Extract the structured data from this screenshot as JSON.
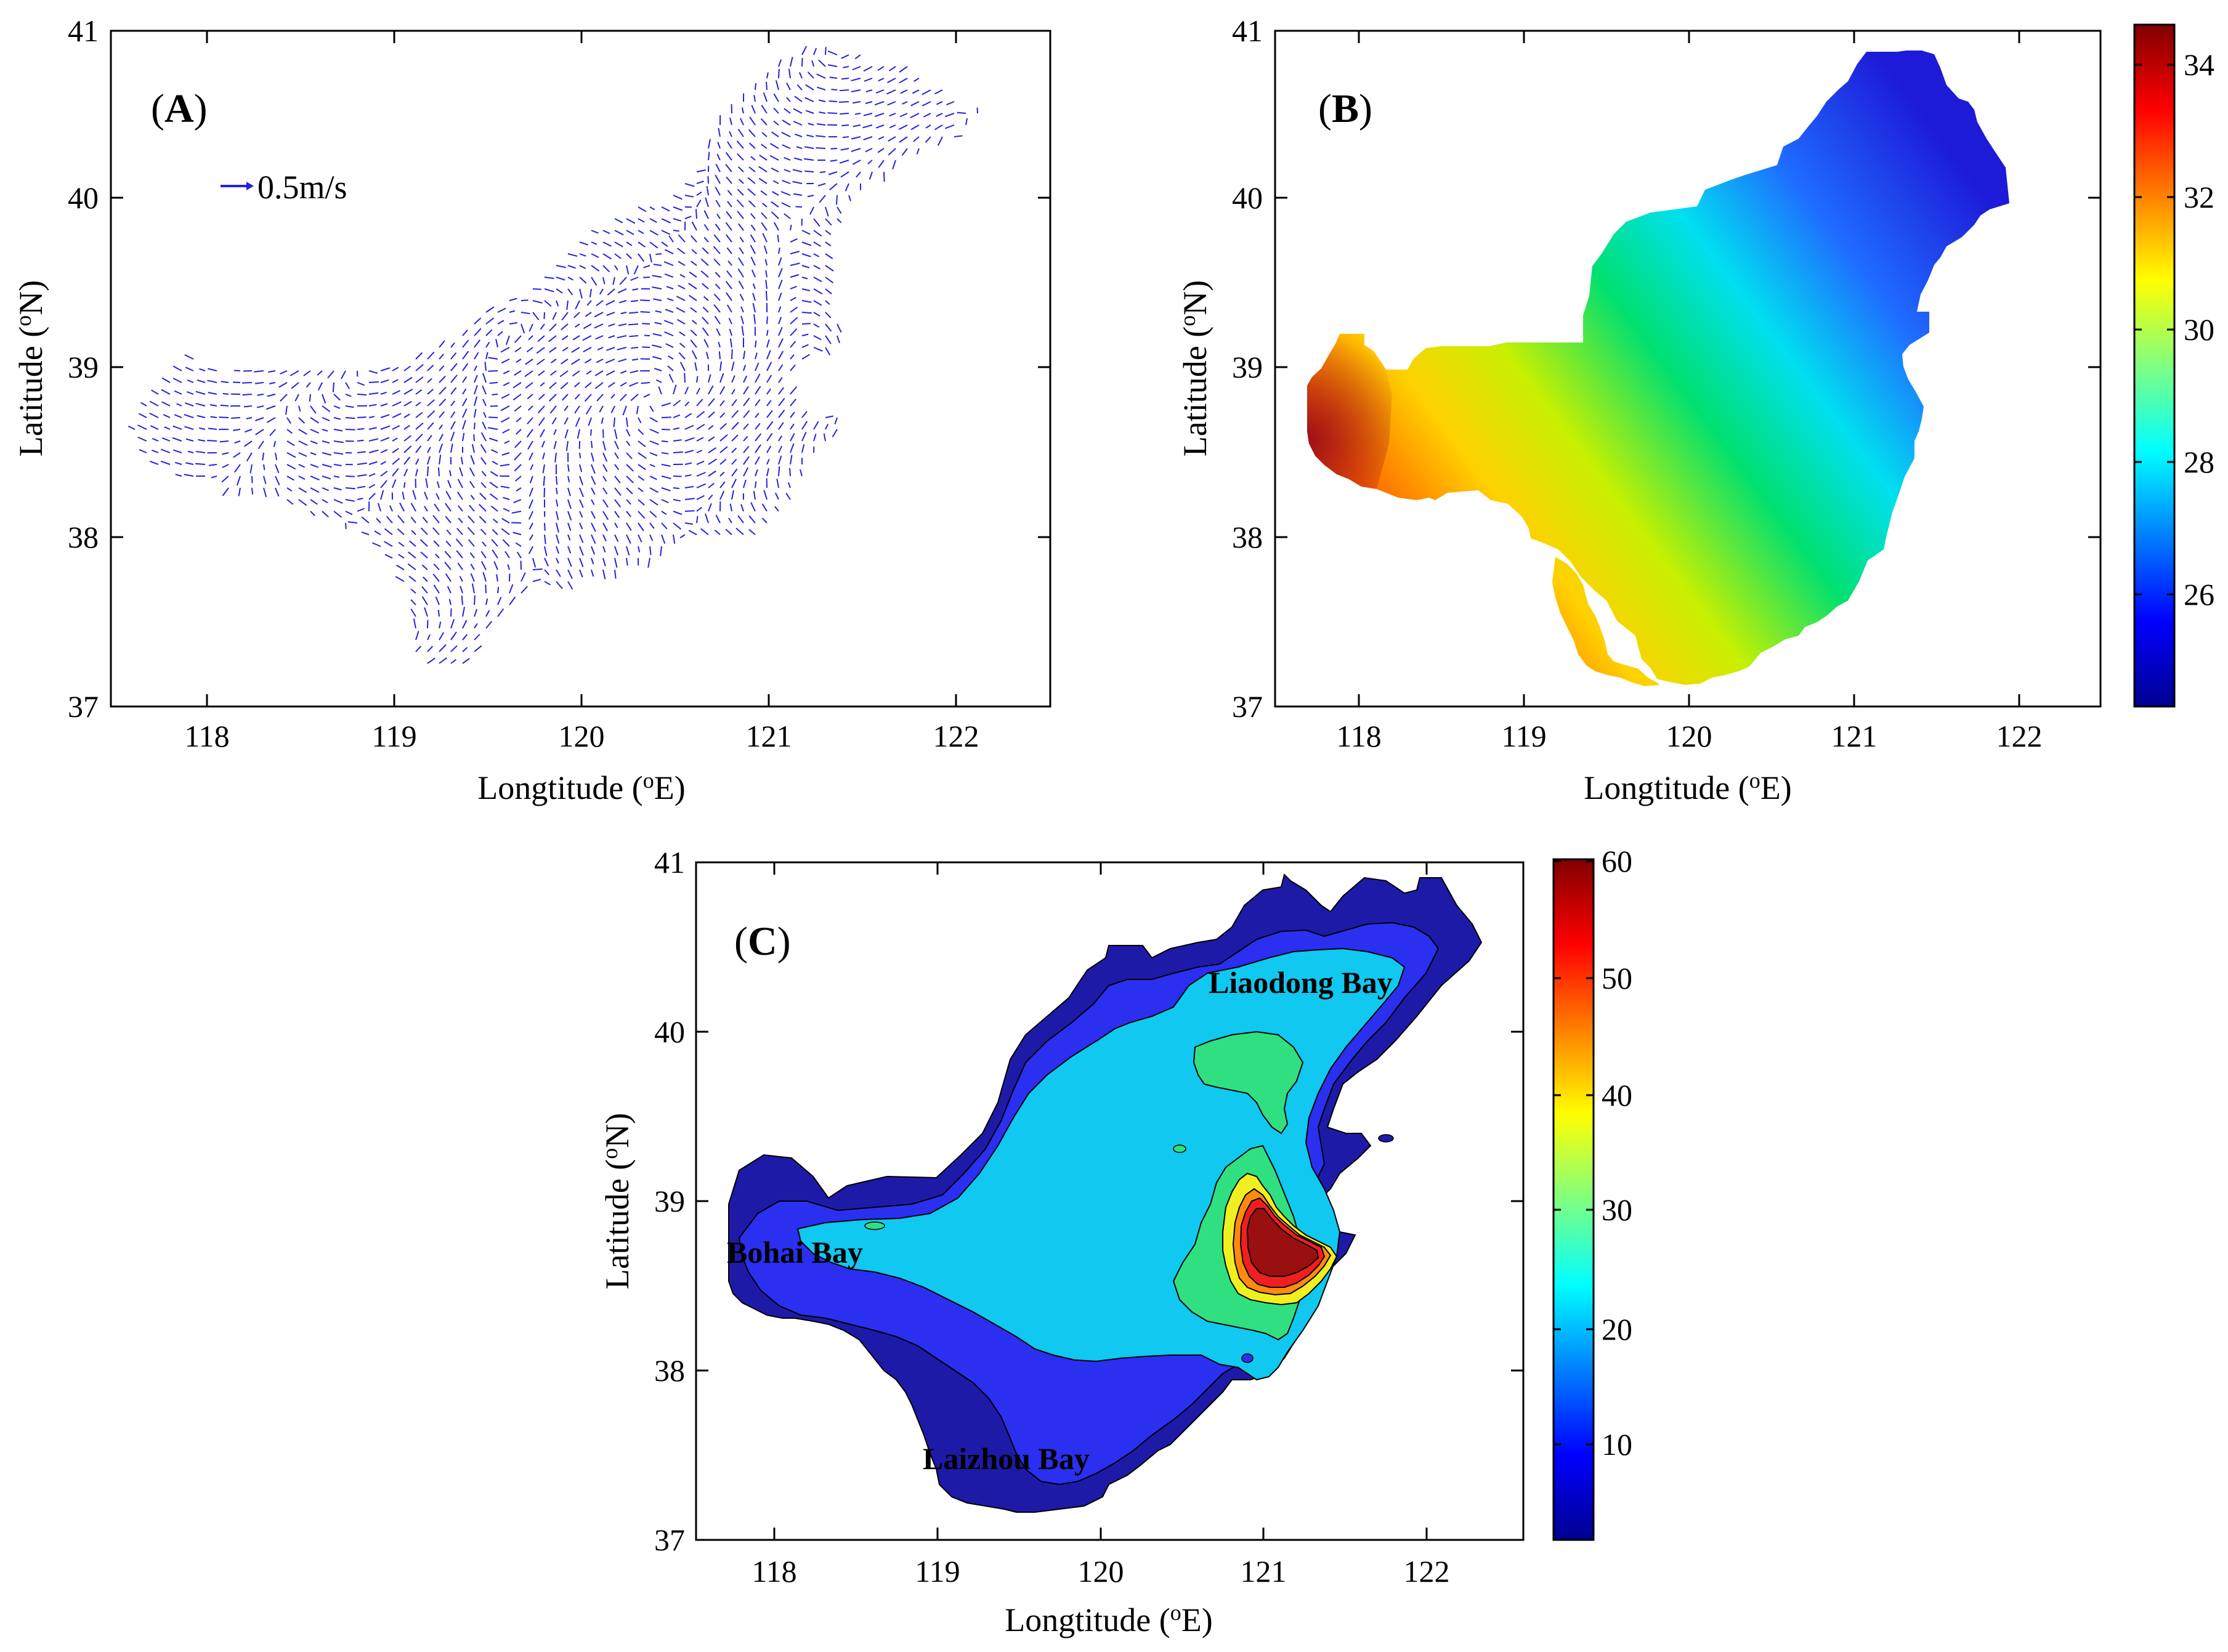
{
  "panels": [
    {
      "id": "A",
      "label_open": "(",
      "label_letter": "A",
      "label_close": ")",
      "type": "vector-field",
      "xlabel_text": "Longtitude (",
      "xlabel_sup": "o",
      "xlabel_unit": "E)",
      "ylabel_text": "Latitude (",
      "ylabel_sup": "o",
      "ylabel_unit": "N)",
      "xticks": [
        "118",
        "119",
        "120",
        "121",
        "122"
      ],
      "yticks": [
        "37",
        "38",
        "39",
        "40",
        "41"
      ],
      "xlim": [
        117.55,
        122.55
      ],
      "ylim": [
        37,
        41
      ],
      "scale_label": "0.5m/s",
      "vector_color": "#2222dd"
    },
    {
      "id": "B",
      "label_open": "(",
      "label_letter": "B",
      "label_close": ")",
      "type": "heatmap",
      "xlabel_text": "Longtitude (",
      "xlabel_sup": "o",
      "xlabel_unit": "E)",
      "ylabel_text": "Latitude (",
      "ylabel_sup": "o",
      "ylabel_unit": "N)",
      "xticks": [
        "118",
        "119",
        "120",
        "121",
        "122"
      ],
      "yticks": [
        "37",
        "38",
        "39",
        "40",
        "41"
      ],
      "xlim": [
        117.55,
        122.55
      ],
      "ylim": [
        37,
        41
      ],
      "colorbar_ticks": [
        "26",
        "28",
        "30",
        "32",
        "34"
      ],
      "colorbar_range": [
        24.3,
        34.6
      ]
    },
    {
      "id": "C",
      "label_open": "(",
      "label_letter": "C",
      "label_close": ")",
      "type": "contour",
      "xlabel_text": "Longtitude (",
      "xlabel_sup": "o",
      "xlabel_unit": "E)",
      "ylabel_text": "Latitude (",
      "ylabel_sup": "o",
      "ylabel_unit": "N)",
      "xticks": [
        "118",
        "119",
        "120",
        "121",
        "122"
      ],
      "yticks": [
        "37",
        "38",
        "39",
        "40",
        "41"
      ],
      "xlim": [
        117.55,
        122.55
      ],
      "ylim": [
        37,
        41
      ],
      "colorbar_ticks": [
        "10",
        "20",
        "30",
        "40",
        "50",
        "60"
      ],
      "colorbar_range": [
        1,
        60
      ],
      "place_names": [
        "Liaodong Bay",
        "Bohai Bay",
        "Laizhou Bay"
      ]
    }
  ],
  "chart_data": [
    {
      "type": "heatmap",
      "title": "",
      "xlabel": "Longtitude (oE)",
      "ylabel": "Latitude (oN)",
      "xlim": [
        117.55,
        122.55
      ],
      "ylim": [
        37,
        41
      ],
      "variable": "current velocity vectors",
      "reference_vector": "0.5m/s"
    },
    {
      "type": "heatmap",
      "title": "",
      "xlabel": "Longtitude (oE)",
      "ylabel": "Latitude (oN)",
      "xlim": [
        117.55,
        122.55
      ],
      "ylim": [
        37,
        41
      ],
      "colorbar_range": [
        24.3,
        34.6
      ],
      "gradient_samples": [
        {
          "lon": 117.7,
          "lat": 38.6,
          "value": 34.5
        },
        {
          "lon": 118.5,
          "lat": 38.5,
          "value": 33.5
        },
        {
          "lon": 119.5,
          "lat": 38.6,
          "value": 31.5
        },
        {
          "lon": 120.0,
          "lat": 38.9,
          "value": 30.5
        },
        {
          "lon": 120.5,
          "lat": 39.4,
          "value": 29.0
        },
        {
          "lon": 121.0,
          "lat": 39.8,
          "value": 27.5
        },
        {
          "lon": 121.6,
          "lat": 40.5,
          "value": 25.0
        }
      ]
    },
    {
      "type": "heatmap",
      "title": "",
      "xlabel": "Longtitude (oE)",
      "ylabel": "Latitude (oN)",
      "xlim": [
        117.55,
        122.55
      ],
      "ylim": [
        37,
        41
      ],
      "colorbar_range": [
        1,
        60
      ],
      "contour_zones": [
        {
          "region": "coastal rim",
          "value": 6
        },
        {
          "region": "central basin",
          "value": 18
        },
        {
          "region": "near 120.7E 39.9N",
          "value": 27
        },
        {
          "region": "near 121.0E 38.6N",
          "value": 58
        }
      ],
      "annotations": [
        "Liaodong Bay",
        "Bohai Bay",
        "Laizhou Bay"
      ]
    }
  ]
}
